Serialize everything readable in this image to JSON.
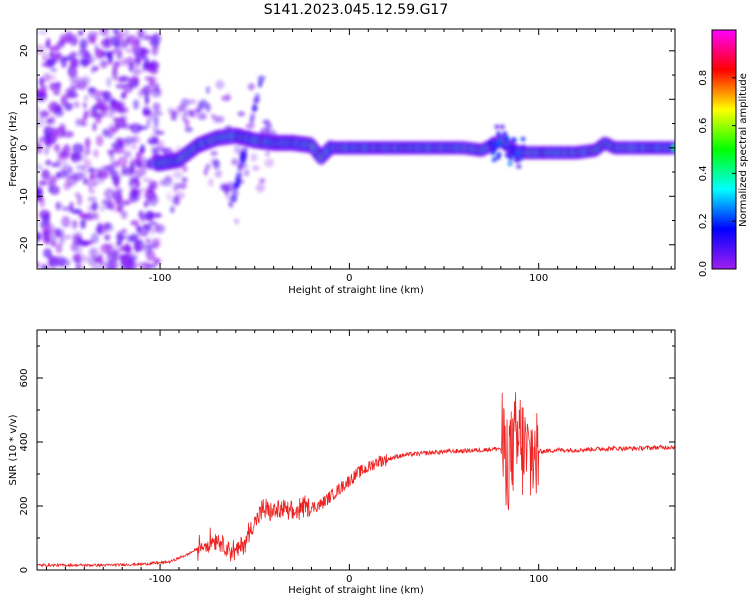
{
  "title": "S141.2023.045.12.59.G17",
  "chart_data": [
    {
      "type": "heatmap",
      "xlabel": "Height of straight line (km)",
      "ylabel": "Frequency (Hz)",
      "xlim": [
        -165,
        172
      ],
      "ylim": [
        -25,
        24.5
      ],
      "xticks": [
        -100,
        0,
        100
      ],
      "yticks": [
        -20,
        -10,
        0,
        10,
        20
      ],
      "colorbar": {
        "label": "Normalized spectral amplitude",
        "range": [
          0,
          1
        ],
        "ticks": [
          0.0,
          0.2,
          0.4,
          0.6,
          0.8
        ],
        "colormap": [
          "#a020f0",
          "#0000ff",
          "#00ffff",
          "#00ff00",
          "#ffff00",
          "#ff0000",
          "#ff00ff"
        ]
      },
      "ridge_points": [
        {
          "x": -100,
          "y": -3.2
        },
        {
          "x": -90,
          "y": -2.5
        },
        {
          "x": -80,
          "y": 0.5
        },
        {
          "x": -70,
          "y": 2
        },
        {
          "x": -60,
          "y": 2.5
        },
        {
          "x": -50,
          "y": 1.5
        },
        {
          "x": -40,
          "y": 1
        },
        {
          "x": -30,
          "y": 1
        },
        {
          "x": -20,
          "y": 0.5
        },
        {
          "x": -15,
          "y": -2
        },
        {
          "x": -10,
          "y": 0
        },
        {
          "x": 0,
          "y": 0
        },
        {
          "x": 20,
          "y": 0
        },
        {
          "x": 40,
          "y": 0
        },
        {
          "x": 60,
          "y": 0
        },
        {
          "x": 70,
          "y": -0.5
        },
        {
          "x": 80,
          "y": 1.5
        },
        {
          "x": 85,
          "y": 0
        },
        {
          "x": 90,
          "y": -1
        },
        {
          "x": 100,
          "y": -1
        },
        {
          "x": 120,
          "y": -1
        },
        {
          "x": 130,
          "y": -0.5
        },
        {
          "x": 135,
          "y": 1
        },
        {
          "x": 140,
          "y": 0
        },
        {
          "x": 160,
          "y": 0
        },
        {
          "x": 172,
          "y": 0
        }
      ]
    },
    {
      "type": "line",
      "xlabel": "Height of straight line (km)",
      "ylabel": "SNR (10 * v/v)",
      "xlim": [
        -165,
        172
      ],
      "ylim": [
        0,
        750
      ],
      "xticks": [
        -100,
        0,
        100
      ],
      "yticks": [
        0,
        200,
        400,
        600
      ],
      "color": "#ee2222",
      "series": [
        {
          "x": [
            -165,
            -150,
            -130,
            -110,
            -95,
            -85,
            -75,
            -70,
            -65,
            -60,
            -55,
            -50,
            -45,
            -40,
            -35,
            -30,
            -25,
            -20,
            -15,
            -10,
            -5,
            0,
            5,
            10,
            15,
            20,
            25,
            30,
            40,
            50,
            60,
            70,
            80,
            85,
            90,
            95,
            100,
            110,
            120,
            130,
            140,
            150,
            160,
            172
          ],
          "y": [
            15,
            15,
            15,
            18,
            25,
            50,
            85,
            100,
            75,
            55,
            90,
            150,
            190,
            180,
            190,
            175,
            195,
            195,
            205,
            230,
            255,
            280,
            305,
            320,
            340,
            345,
            355,
            360,
            365,
            370,
            372,
            375,
            380,
            360,
            400,
            350,
            370,
            375,
            375,
            378,
            380,
            380,
            382,
            385
          ]
        }
      ]
    }
  ]
}
